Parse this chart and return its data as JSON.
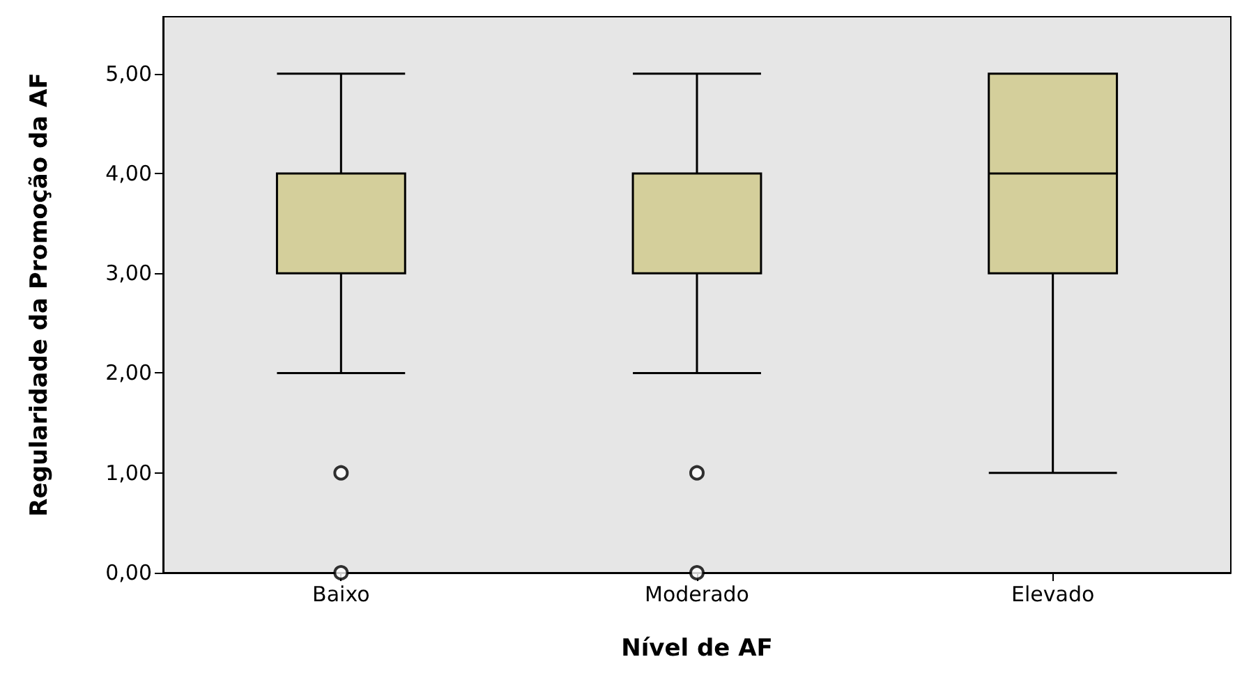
{
  "chart_data": {
    "type": "box",
    "xlabel": "Nível de AF",
    "ylabel": "Regularidade da Promoção da AF",
    "categories": [
      "Baixo",
      "Moderado",
      "Elevado"
    ],
    "ylim": [
      0,
      5.57
    ],
    "yticks": [
      {
        "value": 0,
        "label": "0,00"
      },
      {
        "value": 1,
        "label": "1,00"
      },
      {
        "value": 2,
        "label": "2,00"
      },
      {
        "value": 3,
        "label": "3,00"
      },
      {
        "value": 4,
        "label": "4,00"
      },
      {
        "value": 5,
        "label": "5,00"
      }
    ],
    "grid": false,
    "series": [
      {
        "color": "#d4cf9b",
        "boxes": [
          {
            "low": 2,
            "q1": 3,
            "median": 4,
            "q3": 4,
            "high": 5,
            "outliers": [
              1,
              0
            ]
          },
          {
            "low": 2,
            "q1": 3,
            "median": 4,
            "q3": 4,
            "high": 5,
            "outliers": [
              1,
              0
            ]
          },
          {
            "low": 1,
            "q1": 3,
            "median": 4,
            "q3": 5,
            "high": 5
          }
        ]
      }
    ]
  }
}
